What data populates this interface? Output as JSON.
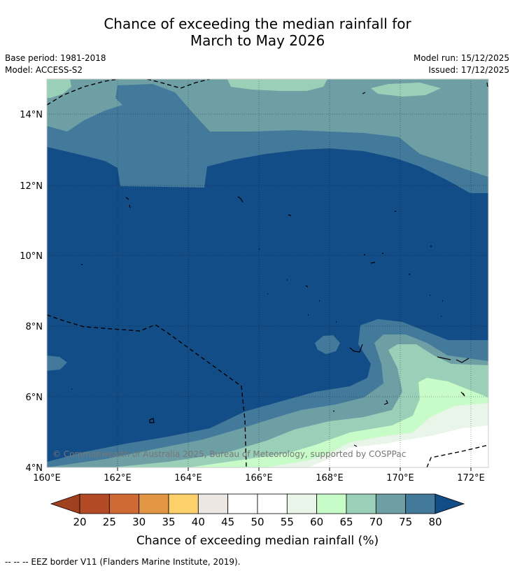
{
  "title": {
    "line1": "Chance of exceeding the median rainfall for",
    "line2": "March to May 2026"
  },
  "meta": {
    "base_period": "Base period: 1981-2018",
    "model": "Model: ACCESS-S2",
    "model_run": "Model run: 15/12/2025",
    "issued": "Issued: 17/12/2025"
  },
  "map": {
    "lon_labels": [
      "160°E",
      "162°E",
      "164°E",
      "166°E",
      "168°E",
      "170°E",
      "172°E"
    ],
    "lat_labels": [
      "14°N",
      "12°N",
      "10°N",
      "8°N",
      "6°N",
      "4°N"
    ],
    "copyright": "© Commonwealth of Australia 2025, Bureau of Meteorology, supported by COSPPac"
  },
  "legend": {
    "ticks": [
      "20",
      "25",
      "30",
      "35",
      "40",
      "45",
      "50",
      "55",
      "60",
      "65",
      "70",
      "75",
      "80"
    ],
    "colors": [
      "#b34a26",
      "#cf6a35",
      "#e39646",
      "#fdd06b",
      "#ece7e2",
      "#ffffff",
      "#ffffff",
      "#e9f5e9",
      "#c7fbc7",
      "#9bd0b8",
      "#6e9fa5",
      "#43799b"
    ],
    "low_arrow_color": "#a0401f",
    "high_arrow_color": "#134d87",
    "title": "Chance of exceeding median rainfall (%)"
  },
  "footer": "-- -- -- EEZ border V11 (Flanders Marine Institute, 2019)."
}
